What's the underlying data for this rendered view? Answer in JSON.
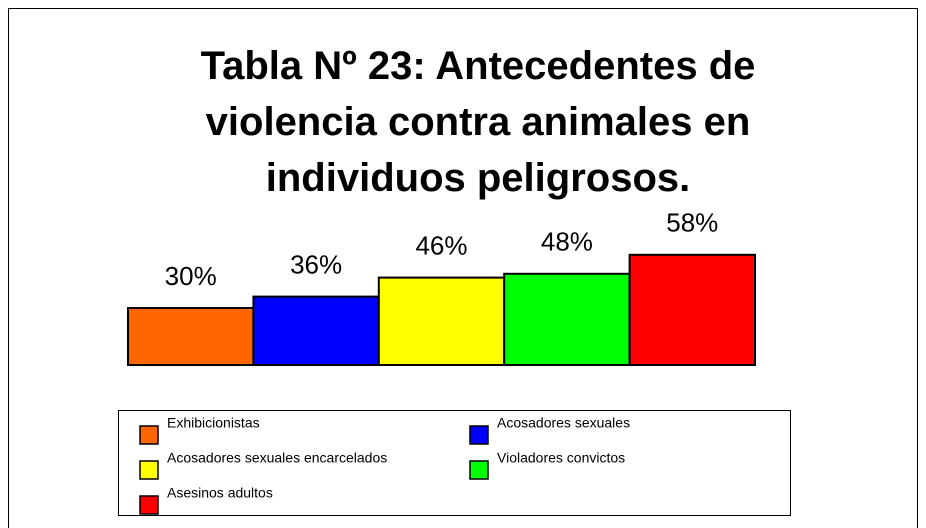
{
  "chart_data": {
    "type": "bar",
    "title": "Tabla Nº 23: Antecedentes de violencia contra animales en individuos peligrosos.",
    "series": [
      {
        "name": "Exhibicionistas",
        "color": "#ff6600",
        "values": [
          30
        ],
        "value_labels": [
          "30%"
        ]
      },
      {
        "name": "Acosadores sexuales",
        "color": "#0000ff",
        "values": [
          36
        ],
        "value_labels": [
          "36%"
        ]
      },
      {
        "name": "Acosadores sexuales encarcelados",
        "color": "#ffff00",
        "values": [
          46
        ],
        "value_labels": [
          "46%"
        ]
      },
      {
        "name": "Violadores convictos",
        "color": "#00ff00",
        "values": [
          48
        ],
        "value_labels": [
          "48%"
        ]
      },
      {
        "name": "Asesinos adultos",
        "color": "#ff0000",
        "values": [
          58
        ],
        "value_labels": [
          "58%"
        ]
      }
    ],
    "legend": "bottom"
  }
}
